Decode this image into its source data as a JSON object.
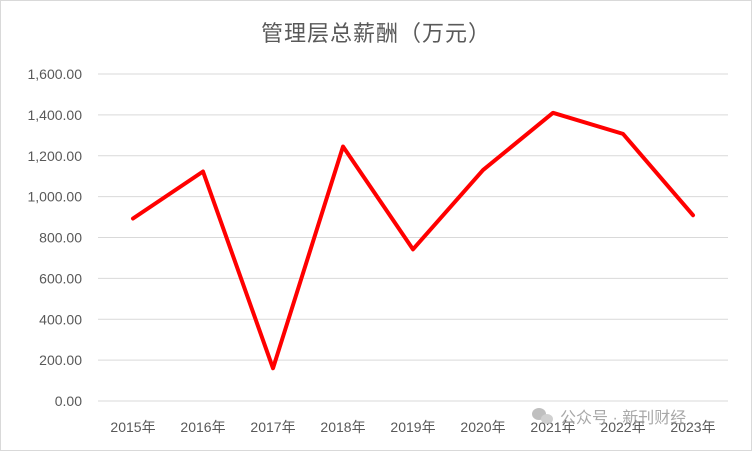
{
  "chart_data": {
    "type": "line",
    "title": "管理层总薪酬（万元）",
    "categories": [
      "2015年",
      "2016年",
      "2017年",
      "2018年",
      "2019年",
      "2020年",
      "2021年",
      "2022年",
      "2023年"
    ],
    "series": [
      {
        "values": [
          893,
          1123,
          160,
          1245,
          742,
          1130,
          1410,
          1307,
          909
        ]
      }
    ],
    "ylim": [
      0,
      1600
    ],
    "yticks": [
      0,
      200,
      400,
      600,
      800,
      1000,
      1200,
      1400,
      1600
    ],
    "ytick_labels": [
      "0.00",
      "200.00",
      "400.00",
      "600.00",
      "800.00",
      "1,000.00",
      "1,200.00",
      "1,400.00",
      "1,600.00"
    ],
    "grid": true,
    "legend": "none",
    "line_color": "#ff0000",
    "grid_color": "#d9d9d9"
  },
  "watermark": {
    "text": "公众号 · 新刊财经",
    "icon": "wechat-icon"
  }
}
